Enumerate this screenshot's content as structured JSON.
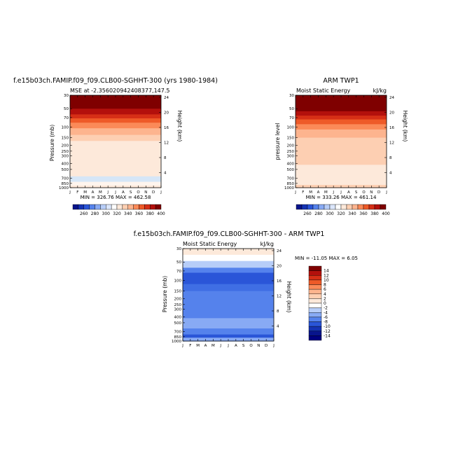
{
  "chart_data": [
    {
      "type": "heatmap",
      "title": "f.e15b03ch.FAMIP.f09_f09.CLB00-SGHHT-300 (yrs 1980-1984)",
      "subtitle": "MSE at -2.356020942408377,147.5",
      "ylabel": "Pressure (mb)",
      "ylabel2": "Height (km)",
      "months": [
        "J",
        "F",
        "M",
        "A",
        "M",
        "J",
        "J",
        "A",
        "S",
        "O",
        "N",
        "D",
        "J"
      ],
      "pressure_ticks": [
        "30",
        "50",
        "70",
        "100",
        "150",
        "200",
        "250",
        "300",
        "400",
        "500",
        "700",
        "850",
        "1000"
      ],
      "height_ticks": [
        "24",
        "20",
        "16",
        "12",
        "8",
        "4"
      ],
      "stats": "MIN = 326.76  MAX = 462.58",
      "bands": [
        {
          "p_top": 30,
          "p_bottom": 50,
          "color": "#7f0000"
        },
        {
          "p_top": 50,
          "p_bottom": 62,
          "color": "#b3100c"
        },
        {
          "p_top": 62,
          "p_bottom": 72,
          "color": "#d62f16"
        },
        {
          "p_top": 72,
          "p_bottom": 85,
          "color": "#ee5a28"
        },
        {
          "p_top": 85,
          "p_bottom": 105,
          "color": "#fb8a58"
        },
        {
          "p_top": 105,
          "p_bottom": 135,
          "color": "#fdb48e"
        },
        {
          "p_top": 135,
          "p_bottom": 170,
          "color": "#fdcfb2"
        },
        {
          "p_top": 170,
          "p_bottom": 650,
          "color": "#fde9da"
        },
        {
          "p_top": 650,
          "p_bottom": 800,
          "color": "#d6e6f7"
        },
        {
          "p_top": 800,
          "p_bottom": 920,
          "color": "#fff5ee"
        },
        {
          "p_top": 920,
          "p_bottom": 1000,
          "color": "#fde9da"
        }
      ],
      "colorbar": {
        "labels": [
          "260",
          "280",
          "300",
          "320",
          "340",
          "360",
          "380",
          "400"
        ],
        "colors": [
          "#08148c",
          "#1533b4",
          "#2a55d8",
          "#5582ec",
          "#88aaf4",
          "#b7cdf8",
          "#dbe6fb",
          "#ffffff",
          "#fde9da",
          "#fdcfb2",
          "#fdb48e",
          "#fb8a58",
          "#ee5a28",
          "#d62f16",
          "#b3100c",
          "#7f0000"
        ]
      }
    },
    {
      "type": "heatmap",
      "title": "ARM TWP1",
      "subtitle_left": "Moist Static Energy",
      "subtitle_right": "kJ/kg",
      "ylabel": "pressure level",
      "ylabel2": "Height (km)",
      "months": [
        "J",
        "F",
        "M",
        "A",
        "M",
        "J",
        "J",
        "A",
        "S",
        "O",
        "N",
        "D",
        "J"
      ],
      "pressure_ticks": [
        "30",
        "50",
        "70",
        "100",
        "150",
        "200",
        "250",
        "300",
        "400",
        "500",
        "700",
        "850",
        "1000"
      ],
      "height_ticks": [
        "24",
        "20",
        "16",
        "12",
        "8",
        "4"
      ],
      "stats": "MIN = 333.26  MAX = 461.14",
      "bands": [
        {
          "p_top": 30,
          "p_bottom": 55,
          "color": "#7f0000"
        },
        {
          "p_top": 55,
          "p_bottom": 65,
          "color": "#b3100c"
        },
        {
          "p_top": 65,
          "p_bottom": 75,
          "color": "#d62f16"
        },
        {
          "p_top": 75,
          "p_bottom": 90,
          "color": "#ee5a28"
        },
        {
          "p_top": 90,
          "p_bottom": 110,
          "color": "#fb8a58"
        },
        {
          "p_top": 110,
          "p_bottom": 150,
          "color": "#fdb48e"
        },
        {
          "p_top": 150,
          "p_bottom": 420,
          "color": "#fdcfb2"
        },
        {
          "p_top": 420,
          "p_bottom": 900,
          "color": "#fde9da"
        },
        {
          "p_top": 900,
          "p_bottom": 1000,
          "color": "#fdcfb2"
        }
      ],
      "colorbar": {
        "labels": [
          "260",
          "280",
          "300",
          "320",
          "340",
          "360",
          "380",
          "400"
        ],
        "colors": [
          "#08148c",
          "#1533b4",
          "#2a55d8",
          "#5582ec",
          "#88aaf4",
          "#b7cdf8",
          "#dbe6fb",
          "#ffffff",
          "#fde9da",
          "#fdcfb2",
          "#fdb48e",
          "#fb8a58",
          "#ee5a28",
          "#d62f16",
          "#b3100c",
          "#7f0000"
        ]
      }
    },
    {
      "type": "heatmap",
      "title": "f.e15b03ch.FAMIP.f09_f09.CLB00-SGHHT-300 - ARM TWP1",
      "subtitle_left": "Moist Static Energy",
      "subtitle_right": "kJ/kg",
      "ylabel": "Pressure (mb)",
      "ylabel2": "Height (km)",
      "months": [
        "J",
        "F",
        "M",
        "A",
        "M",
        "J",
        "J",
        "A",
        "S",
        "O",
        "N",
        "D",
        "J"
      ],
      "pressure_ticks": [
        "30",
        "50",
        "70",
        "100",
        "150",
        "200",
        "250",
        "300",
        "400",
        "500",
        "700",
        "850",
        "1000"
      ],
      "height_ticks": [
        "24",
        "20",
        "16",
        "12",
        "8",
        "4"
      ],
      "stats": "MIN = -11.05  MAX =   6.05",
      "bands": [
        {
          "p_top": 30,
          "p_bottom": 38,
          "color": "#fde9da"
        },
        {
          "p_top": 38,
          "p_bottom": 48,
          "color": "#ffffff"
        },
        {
          "p_top": 48,
          "p_bottom": 62,
          "color": "#b7cdf8"
        },
        {
          "p_top": 62,
          "p_bottom": 75,
          "color": "#5582ec"
        },
        {
          "p_top": 75,
          "p_bottom": 115,
          "color": "#2a55d8"
        },
        {
          "p_top": 115,
          "p_bottom": 150,
          "color": "#3f6ee4"
        },
        {
          "p_top": 150,
          "p_bottom": 420,
          "color": "#5582ec"
        },
        {
          "p_top": 420,
          "p_bottom": 620,
          "color": "#88aaf4"
        },
        {
          "p_top": 620,
          "p_bottom": 780,
          "color": "#5582ec"
        },
        {
          "p_top": 780,
          "p_bottom": 880,
          "color": "#2a55d8"
        },
        {
          "p_top": 880,
          "p_bottom": 1000,
          "color": "#88aaf4"
        }
      ],
      "colorbar": {
        "labels": [
          "14",
          "12",
          "10",
          "8",
          "6",
          "4",
          "2",
          "0",
          "-2",
          "-4",
          "-6",
          "-8",
          "-10",
          "-12",
          "-14"
        ],
        "colors": [
          "#7f0000",
          "#b3100c",
          "#d62f16",
          "#ee5a28",
          "#fb8a58",
          "#fdb48e",
          "#fdcfb2",
          "#fde9da",
          "#ffffff",
          "#b7cdf8",
          "#88aaf4",
          "#5582ec",
          "#2a55d8",
          "#1533b4",
          "#08148c",
          "#000080"
        ]
      }
    }
  ]
}
